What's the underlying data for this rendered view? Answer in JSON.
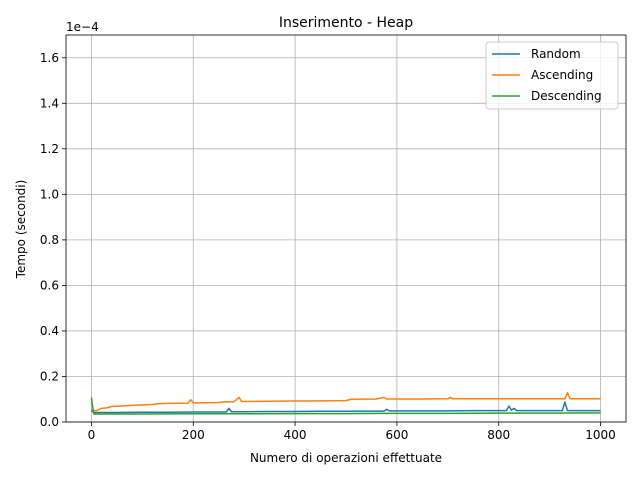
{
  "chart_data": {
    "type": "line",
    "title": "Inserimento - Heap",
    "xlabel": "Numero di operazioni effettuate",
    "ylabel": "Tempo (secondi)",
    "y_offset_label": "1e−4",
    "xlim": [
      -50,
      1050
    ],
    "ylim": [
      0,
      1.7
    ],
    "y_scale_factor": 0.0001,
    "xticks": [
      0,
      200,
      400,
      600,
      800,
      1000
    ],
    "xtick_labels": [
      "0",
      "200",
      "400",
      "600",
      "800",
      "1000"
    ],
    "yticks": [
      0,
      0.2,
      0.4,
      0.6,
      0.8,
      1.0,
      1.2,
      1.4,
      1.6
    ],
    "ytick_labels": [
      "0.0",
      "0.2",
      "0.4",
      "0.6",
      "0.8",
      "1.0",
      "1.2",
      "1.4",
      "1.6"
    ],
    "grid": true,
    "legend_position": "top-right",
    "series": [
      {
        "name": "Random",
        "color": "#1f77b4",
        "points": [
          [
            0,
            0.05
          ],
          [
            5,
            0.04
          ],
          [
            10,
            0.042
          ],
          [
            50,
            0.042
          ],
          [
            100,
            0.043
          ],
          [
            150,
            0.043
          ],
          [
            200,
            0.044
          ],
          [
            250,
            0.044
          ],
          [
            265,
            0.044
          ],
          [
            270,
            0.06
          ],
          [
            275,
            0.045
          ],
          [
            300,
            0.045
          ],
          [
            350,
            0.046
          ],
          [
            400,
            0.046
          ],
          [
            450,
            0.047
          ],
          [
            500,
            0.047
          ],
          [
            550,
            0.048
          ],
          [
            575,
            0.048
          ],
          [
            580,
            0.056
          ],
          [
            585,
            0.049
          ],
          [
            600,
            0.049
          ],
          [
            650,
            0.049
          ],
          [
            700,
            0.049
          ],
          [
            750,
            0.05
          ],
          [
            800,
            0.05
          ],
          [
            815,
            0.05
          ],
          [
            820,
            0.07
          ],
          [
            825,
            0.052
          ],
          [
            830,
            0.06
          ],
          [
            835,
            0.05
          ],
          [
            900,
            0.05
          ],
          [
            925,
            0.05
          ],
          [
            930,
            0.088
          ],
          [
            935,
            0.05
          ],
          [
            950,
            0.05
          ],
          [
            1000,
            0.05
          ]
        ]
      },
      {
        "name": "Ascending",
        "color": "#ff7f0e",
        "points": [
          [
            0,
            0.055
          ],
          [
            5,
            0.05
          ],
          [
            10,
            0.05
          ],
          [
            15,
            0.055
          ],
          [
            20,
            0.06
          ],
          [
            30,
            0.062
          ],
          [
            40,
            0.068
          ],
          [
            60,
            0.07
          ],
          [
            80,
            0.073
          ],
          [
            100,
            0.075
          ],
          [
            120,
            0.077
          ],
          [
            130,
            0.08
          ],
          [
            150,
            0.082
          ],
          [
            190,
            0.083
          ],
          [
            195,
            0.098
          ],
          [
            200,
            0.084
          ],
          [
            250,
            0.085
          ],
          [
            255,
            0.088
          ],
          [
            280,
            0.089
          ],
          [
            290,
            0.108
          ],
          [
            295,
            0.09
          ],
          [
            350,
            0.091
          ],
          [
            400,
            0.092
          ],
          [
            450,
            0.093
          ],
          [
            500,
            0.094
          ],
          [
            510,
            0.1
          ],
          [
            560,
            0.101
          ],
          [
            575,
            0.108
          ],
          [
            580,
            0.101
          ],
          [
            650,
            0.101
          ],
          [
            700,
            0.102
          ],
          [
            705,
            0.108
          ],
          [
            710,
            0.102
          ],
          [
            800,
            0.102
          ],
          [
            850,
            0.102
          ],
          [
            900,
            0.102
          ],
          [
            930,
            0.102
          ],
          [
            935,
            0.128
          ],
          [
            940,
            0.102
          ],
          [
            1000,
            0.102
          ]
        ]
      },
      {
        "name": "Descending",
        "color": "#2ca02c",
        "points": [
          [
            0,
            0.108
          ],
          [
            2,
            0.07
          ],
          [
            5,
            0.035
          ],
          [
            50,
            0.035
          ],
          [
            100,
            0.035
          ],
          [
            200,
            0.036
          ],
          [
            300,
            0.036
          ],
          [
            400,
            0.037
          ],
          [
            500,
            0.037
          ],
          [
            600,
            0.038
          ],
          [
            700,
            0.038
          ],
          [
            800,
            0.039
          ],
          [
            900,
            0.039
          ],
          [
            1000,
            0.04
          ]
        ]
      }
    ]
  }
}
